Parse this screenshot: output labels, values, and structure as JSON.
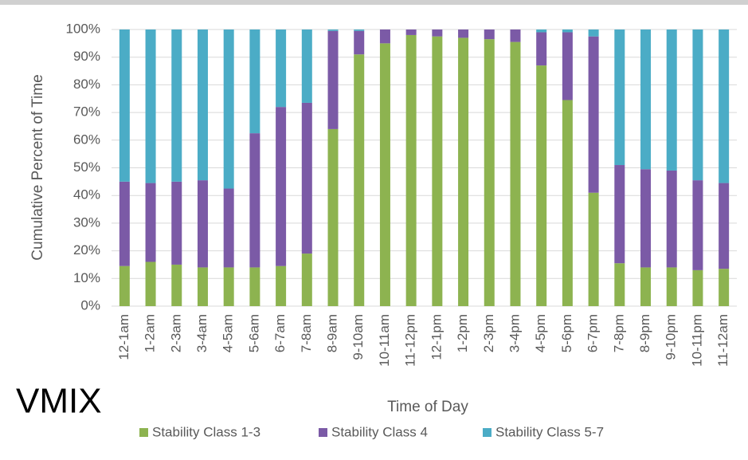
{
  "chart_data": {
    "type": "stacked_bar",
    "y_label": "Cumulative Percent of Time",
    "x_label": "Time of Day",
    "annotation": "VMIX",
    "categories": [
      "12-1am",
      "1-2am",
      "2-3am",
      "3-4am",
      "4-5am",
      "5-6am",
      "6-7am",
      "7-8am",
      "8-9am",
      "9-10am",
      "10-11am",
      "11-12pm",
      "12-1pm",
      "1-2pm",
      "2-3pm",
      "3-4pm",
      "4-5pm",
      "5-6pm",
      "6-7pm",
      "7-8pm",
      "8-9pm",
      "9-10pm",
      "10-11pm",
      "11-12am"
    ],
    "series": [
      {
        "name": "Stability Class 1-3",
        "color": "#8db350",
        "values": [
          14.5,
          16,
          15,
          14,
          14,
          14,
          14.5,
          19,
          64,
          91,
          95,
          98,
          97.5,
          97,
          96.5,
          95.5,
          87,
          74.5,
          41,
          15.5,
          14,
          14,
          13,
          13.5
        ]
      },
      {
        "name": "Stability Class 4",
        "color": "#7b5aa6",
        "values": [
          30.5,
          28.5,
          30,
          31.5,
          28.5,
          48.5,
          57.5,
          54.5,
          35.5,
          8.5,
          5,
          2,
          2.5,
          3,
          3.5,
          4.5,
          12,
          24.5,
          56.5,
          35.5,
          35.5,
          35,
          32.5,
          31
        ]
      },
      {
        "name": "Stability Class 5-7",
        "color": "#4bacc6",
        "values": [
          55,
          55.5,
          55,
          54.5,
          57.5,
          37.5,
          28,
          26.5,
          0.5,
          0.5,
          0,
          0,
          0,
          0,
          0,
          0,
          1,
          1,
          2.5,
          49,
          50.5,
          51,
          54.5,
          55.5
        ]
      }
    ],
    "ylim": [
      0,
      100
    ],
    "yticks": [
      {
        "value": 0,
        "label": "0%"
      },
      {
        "value": 10,
        "label": "10%"
      },
      {
        "value": 20,
        "label": "20%"
      },
      {
        "value": 30,
        "label": "30%"
      },
      {
        "value": 40,
        "label": "40%"
      },
      {
        "value": 50,
        "label": "50%"
      },
      {
        "value": 60,
        "label": "60%"
      },
      {
        "value": 70,
        "label": "70%"
      },
      {
        "value": 80,
        "label": "80%"
      },
      {
        "value": 90,
        "label": "90%"
      },
      {
        "value": 100,
        "label": "100%"
      }
    ],
    "grid": true
  }
}
